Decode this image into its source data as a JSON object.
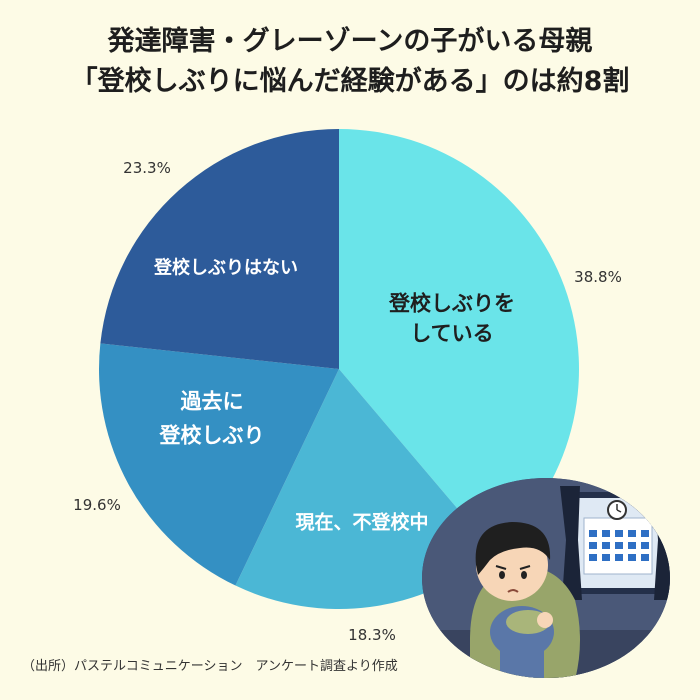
{
  "title_lines": [
    "発達障害・グレーゾーンの子がいる母親",
    "「登校しぶりに悩んだ経験がある」のは約8割"
  ],
  "source": "（出所）パステルコミュニケーション　アンケート調査より作成",
  "chart_data": {
    "type": "pie",
    "title": "発達障害・グレーゾーンの子がいる母親「登校しぶりに悩んだ経験がある」のは約8割",
    "start": "12 o'clock",
    "direction": "clockwise",
    "slices": [
      {
        "label_lines": [
          "登校しぶりを",
          "している"
        ],
        "value": 38.8,
        "value_label": "38.8%",
        "color": "#6ae4e9"
      },
      {
        "label_lines": [
          "現在、不登校中"
        ],
        "value": 18.3,
        "value_label": "18.3%",
        "color": "#4bb7d5"
      },
      {
        "label_lines": [
          "過去に",
          "登校しぶり"
        ],
        "value": 19.6,
        "value_label": "19.6%",
        "color": "#3490c3"
      },
      {
        "label_lines": [
          "登校しぶりはない"
        ],
        "value": 23.3,
        "value_label": "23.3%",
        "color": "#2d5b9a"
      }
    ]
  },
  "illustration": {
    "name": "sad-child-sitting-by-window",
    "calendar_icon": "calendar-icon",
    "clock_icon": "clock-icon"
  }
}
